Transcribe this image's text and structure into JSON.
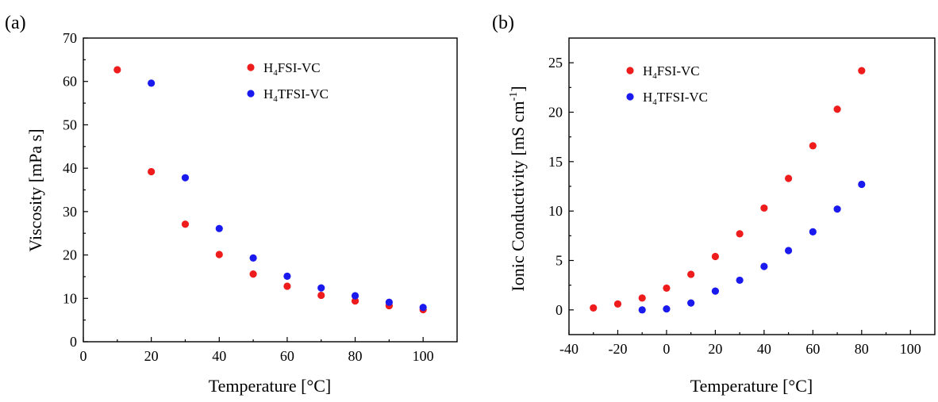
{
  "chart_data": [
    {
      "type": "scatter",
      "panel_label": "(a)",
      "xlabel": "Temperature [°C]",
      "ylabel": "Viscosity [mPa s]",
      "xlim": [
        0,
        110
      ],
      "ylim": [
        0,
        70
      ],
      "xticks": [
        0,
        20,
        40,
        60,
        80,
        100
      ],
      "yticks": [
        0,
        10,
        20,
        30,
        40,
        50,
        60,
        70
      ],
      "legend_position": "top-right",
      "grid": false,
      "series": [
        {
          "name": "H4FSI-VC",
          "label_parts": [
            "H",
            "4",
            "FSI-VC"
          ],
          "color": "#ee1c1c",
          "x": [
            10,
            20,
            30,
            40,
            50,
            60,
            70,
            80,
            90,
            100
          ],
          "y": [
            62.7,
            39.2,
            27.1,
            20.1,
            15.6,
            12.8,
            10.7,
            9.4,
            8.3,
            7.4
          ]
        },
        {
          "name": "H4TFSI-VC",
          "label_parts": [
            "H",
            "4",
            "TFSI-VC"
          ],
          "color": "#1a1aee",
          "x": [
            20,
            30,
            40,
            50,
            60,
            70,
            80,
            90,
            100
          ],
          "y": [
            59.6,
            37.8,
            26.1,
            19.3,
            15.1,
            12.4,
            10.6,
            9.1,
            7.9
          ]
        }
      ]
    },
    {
      "type": "scatter",
      "panel_label": "(b)",
      "xlabel": "Temperature [°C]",
      "ylabel_parts": [
        "Ionic Conductivity [mS cm",
        "-1",
        "]"
      ],
      "xlim": [
        -40,
        110
      ],
      "ylim": [
        -2.5,
        27.5
      ],
      "xticks": [
        -40,
        -20,
        0,
        20,
        40,
        60,
        80,
        100
      ],
      "yticks": [
        0,
        5,
        10,
        15,
        20,
        25
      ],
      "legend_position": "top-left",
      "grid": false,
      "series": [
        {
          "name": "H4FSI-VC",
          "label_parts": [
            "H",
            "4",
            "FSI-VC"
          ],
          "color": "#ee1c1c",
          "x": [
            -30,
            -20,
            -10,
            0,
            10,
            20,
            30,
            40,
            50,
            60,
            70,
            80
          ],
          "y": [
            0.2,
            0.6,
            1.2,
            2.2,
            3.6,
            5.4,
            7.7,
            10.3,
            13.3,
            16.6,
            20.3,
            24.2
          ]
        },
        {
          "name": "H4TFSI-VC",
          "label_parts": [
            "H",
            "4",
            "TFSI-VC"
          ],
          "color": "#1a1aee",
          "x": [
            -10,
            0,
            10,
            20,
            30,
            40,
            50,
            60,
            70,
            80
          ],
          "y": [
            0.0,
            0.1,
            0.7,
            1.9,
            3.0,
            4.4,
            6.0,
            7.9,
            10.2,
            12.7
          ]
        }
      ]
    }
  ]
}
